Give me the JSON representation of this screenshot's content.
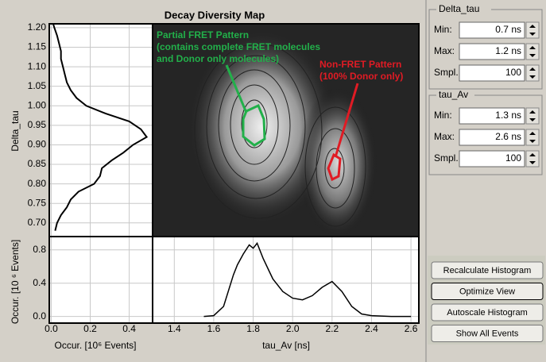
{
  "title": "Decay Diversity Map",
  "map": {
    "annotations": [
      {
        "lines": [
          "Partial FRET Pattern",
          "(contains complete FRET molecules",
          "and Donor only molecules)"
        ],
        "color": "#22b04a"
      },
      {
        "lines": [
          "Non-FRET Pattern",
          "(100% Donor only)"
        ],
        "color": "#e01b24"
      }
    ]
  },
  "delta_tau_histogram": {
    "ylabel": "Delta_tau",
    "xlabel": "Occur. [10⁶ Events]",
    "ylim": [
      0.665,
      1.21
    ],
    "yticks": [
      {
        "value": 0.7,
        "label": "0.70"
      },
      0.75,
      {
        "value": 0.8,
        "label": "0.80"
      },
      0.85,
      {
        "value": 0.9,
        "label": "0.90"
      },
      0.95,
      {
        "value": 1.0,
        "label": "1.00"
      },
      1.05,
      {
        "value": 1.1,
        "label": "1.10"
      },
      1.15,
      {
        "value": 1.2,
        "label": "1.20"
      }
    ],
    "xlim": [
      -0.01,
      0.52
    ],
    "xticks": [
      {
        "value": 0,
        "label": "0.0"
      },
      0.2,
      0.4
    ],
    "delta_tau": [
      0.68,
      0.7,
      0.72,
      0.74,
      0.76,
      0.78,
      0.8,
      0.82,
      0.84,
      0.86,
      0.88,
      0.9,
      0.92,
      0.94,
      0.96,
      0.98,
      1.0,
      1.02,
      1.04,
      1.06,
      1.08,
      1.1,
      1.12,
      1.14,
      1.16,
      1.18,
      1.2,
      1.21
    ],
    "occurrence": [
      0.02,
      0.03,
      0.05,
      0.08,
      0.1,
      0.14,
      0.22,
      0.25,
      0.26,
      0.31,
      0.37,
      0.42,
      0.49,
      0.46,
      0.4,
      0.28,
      0.18,
      0.13,
      0.1,
      0.08,
      0.07,
      0.06,
      0.05,
      0.05,
      0.04,
      0.03,
      0.016,
      0.01
    ]
  },
  "tau_av_histogram": {
    "xlabel": "tau_Av [ns]",
    "ylabel": "Occur. [10 ⁶ Events]",
    "xlim": [
      1.29,
      2.64
    ],
    "xticks": [
      1.4,
      1.6,
      1.8,
      {
        "value": 2.0,
        "label": "2.0"
      },
      2.2,
      2.4,
      2.6
    ],
    "ylim": [
      -0.08,
      0.96
    ],
    "yticks": [
      {
        "value": 0,
        "label": "0.0"
      },
      0.4,
      0.8
    ],
    "tau_av": [
      1.55,
      1.6,
      1.65,
      1.7,
      1.72,
      1.75,
      1.78,
      1.8,
      1.82,
      1.85,
      1.88,
      1.9,
      1.95,
      2.0,
      2.05,
      2.1,
      2.15,
      2.2,
      2.25,
      2.3,
      2.35,
      2.4,
      2.5,
      2.6
    ],
    "occurrence": [
      0,
      0.01,
      0.12,
      0.5,
      0.62,
      0.75,
      0.86,
      0.82,
      0.88,
      0.7,
      0.55,
      0.45,
      0.3,
      0.22,
      0.2,
      0.25,
      0.35,
      0.42,
      0.3,
      0.12,
      0.03,
      0.01,
      0,
      0
    ]
  },
  "controls": [
    {
      "title": "Delta_tau",
      "fields": [
        {
          "label": "Min:",
          "value": "0.7 ns"
        },
        {
          "label": "Max:",
          "value": "1.2 ns"
        },
        {
          "label": "Smpl. Pts.:",
          "value": "100"
        }
      ]
    },
    {
      "title": "tau_Av",
      "fields": [
        {
          "label": "Min:",
          "value": "1.3 ns"
        },
        {
          "label": "Max:",
          "value": "2.6 ns"
        },
        {
          "label": "Smpl. Pts.:",
          "value": "100"
        }
      ]
    }
  ],
  "buttons": [
    "Recalculate Histogram",
    "Optimize View",
    "Autoscale Histogram",
    "Show All Events"
  ]
}
